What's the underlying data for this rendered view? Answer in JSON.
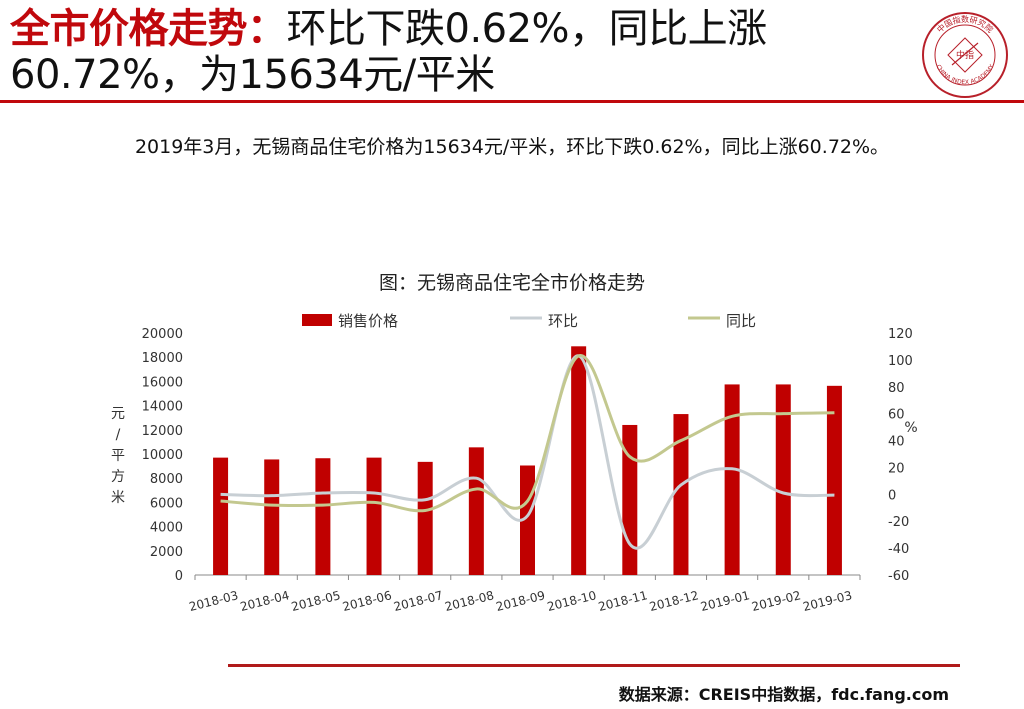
{
  "header": {
    "title_highlight": "全市价格走势：",
    "title_rest": "环比下跌0.62%，同比上涨60.72%，为15634元/平米",
    "summary": "2019年3月，无锡商品住宅价格为15634元/平米，环比下跌0.62%，同比上涨60.72%。"
  },
  "logo": {
    "icon": "china-index-academy-seal",
    "text_top": "中国指数研究院",
    "text_bottom": "CHINA INDEX ACADEMY",
    "center": "中指"
  },
  "colors": {
    "accent": "#c0080c",
    "bar": "#c00000",
    "mom_line": "#c8cfd4",
    "yoy_line": "#c3c88f"
  },
  "chart_data": {
    "type": "bar",
    "title": "图：无锡商品住宅全市价格走势",
    "categories": [
      "2018-03",
      "2018-04",
      "2018-05",
      "2018-06",
      "2018-07",
      "2018-08",
      "2018-09",
      "2018-10",
      "2018-11",
      "2018-12",
      "2019-01",
      "2019-02",
      "2019-03"
    ],
    "series": [
      {
        "name": "销售价格",
        "type": "bar",
        "axis": "left",
        "values": [
          9700,
          9550,
          9650,
          9700,
          9350,
          10550,
          9050,
          18900,
          12400,
          13300,
          15750,
          15750,
          15634
        ]
      },
      {
        "name": "环比",
        "type": "line",
        "axis": "right",
        "values": [
          0,
          -1,
          1,
          1,
          -4,
          12,
          -16,
          103,
          -37,
          7,
          19,
          1,
          -0.62
        ]
      },
      {
        "name": "同比",
        "type": "line",
        "axis": "right",
        "values": [
          -5,
          -8,
          -8,
          -6,
          -12,
          4,
          -5,
          103,
          28,
          40,
          58,
          60,
          60.72
        ]
      }
    ],
    "ylabel_left": "元/平方米",
    "ylabel_right": "%",
    "ylim_left": [
      0,
      20000
    ],
    "ylim_right": [
      -60,
      120
    ],
    "yticks_left": [
      0,
      2000,
      4000,
      6000,
      8000,
      10000,
      12000,
      14000,
      16000,
      18000,
      20000
    ],
    "yticks_right": [
      -60,
      -40,
      -20,
      0,
      20,
      40,
      60,
      80,
      100,
      120
    ],
    "legend": "top",
    "grid": false
  },
  "footer": {
    "source": "数据来源：CREIS中指数据，fdc.fang.com"
  }
}
